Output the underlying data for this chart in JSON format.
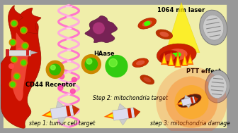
{
  "bg_yellow": "#f0eeaa",
  "bg_border": "#999999",
  "vessel_red": "#cc1100",
  "vessel_light": "#ee4433",
  "vessel_pink": "#ffaaaa",
  "dna_pink1": "#ff77cc",
  "dna_pink2": "#ffaadd",
  "dna_cross": "#ffccee",
  "green_bright": "#44dd00",
  "green_mid": "#33bb00",
  "green_dark": "#228800",
  "gold": "#cc8800",
  "gold_light": "#ddaa00",
  "purple_cell": "#772255",
  "purple_nuc": "#994477",
  "mito_red": "#cc3300",
  "mito_red2": "#aa2200",
  "mito_inner": "#ee6644",
  "gray_mito": "#999999",
  "gray_mito2": "#bbbbbb",
  "gray_mito3": "#777777",
  "flame_orange": "#ff6600",
  "flame_yellow": "#ffee00",
  "laser_yellow": "#ffee00",
  "rocket_body": "#ddddee",
  "rocket_nose": "#cc3300",
  "pink_dot": "#ff44aa",
  "texts": {
    "laser": "1064 nm laser",
    "haase": "HAase",
    "cd44": "CD44 Receptor",
    "ptt": "PTT effect",
    "step1": "step 1: tumor cell target",
    "step2": "Step 2: mitochondria target",
    "step3": "step 3: mitochondria damage"
  },
  "fs": 6.0
}
